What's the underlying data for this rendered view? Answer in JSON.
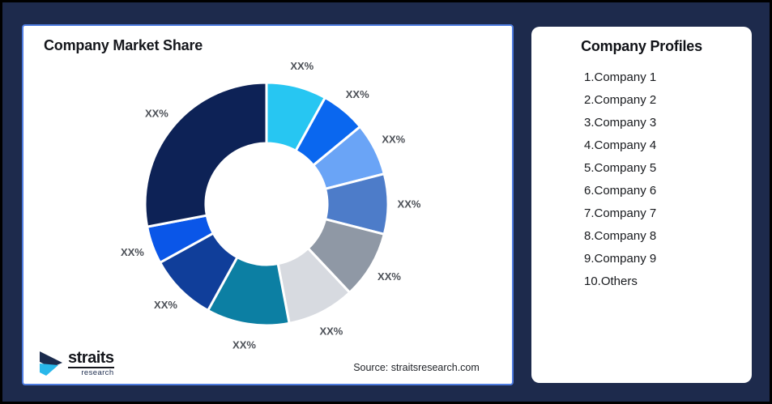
{
  "page": {
    "background_color": "#1d2a4c",
    "frame_color": "#000000",
    "card_color": "#ffffff",
    "chart_card_border_color": "#4e7ce0"
  },
  "chart_data": {
    "type": "pie",
    "subtype": "donut",
    "title": "Company Market Share",
    "direction": "clockwise",
    "start_angle_deg": 0,
    "inner_radius_ratio": 0.5,
    "legend": "none",
    "label_color": "#4c5057",
    "segments": [
      {
        "label": "XX%",
        "value": 8,
        "color": "#27c6f2"
      },
      {
        "label": "XX%",
        "value": 6,
        "color": "#0a67ef"
      },
      {
        "label": "XX%",
        "value": 7,
        "color": "#6aa4f6"
      },
      {
        "label": "XX%",
        "value": 8,
        "color": "#4d7cc9"
      },
      {
        "label": "XX%",
        "value": 9,
        "color": "#8f98a5"
      },
      {
        "label": "XX%",
        "value": 9,
        "color": "#d7dae0"
      },
      {
        "label": "XX%",
        "value": 11,
        "color": "#0c7fa3"
      },
      {
        "label": "XX%",
        "value": 9,
        "color": "#103e9a"
      },
      {
        "label": "XX%",
        "value": 5,
        "color": "#0a56e8"
      },
      {
        "label": "XX%",
        "value": 28,
        "color": "#0d2256"
      }
    ],
    "source": "Source: straitsresearch.com"
  },
  "profiles": {
    "title": "Company Profiles",
    "items": [
      "1.Company 1",
      "2.Company 2",
      "3.Company 3",
      "4.Company 4",
      "5.Company 5",
      "6.Company 6",
      "7.Company 7",
      "8.Company 8",
      "9.Company 9",
      "10.Others"
    ]
  },
  "logo": {
    "brand": "straits",
    "sub": "research",
    "icon_dark_color": "#1b2b4d",
    "icon_light_color": "#29b7ea"
  }
}
